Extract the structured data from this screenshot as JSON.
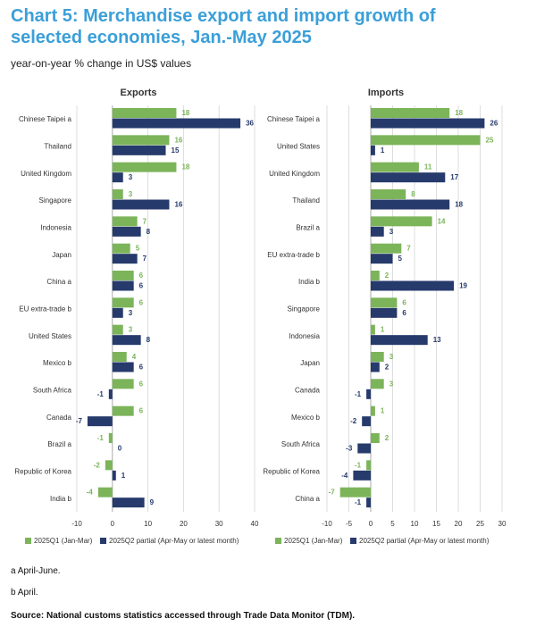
{
  "title": "Chart 5: Merchandise export and import growth of selected economies, Jan.-May 2025",
  "subtitle": "year-on-year % change in US$ values",
  "colors": {
    "q1": "#7cb45a",
    "q2": "#263a6b",
    "title": "#3b9fd8"
  },
  "legend": {
    "q1": "2025Q1 (Jan-Mar)",
    "q2": "2025Q2 partial (Apr-May or latest month)"
  },
  "footnotes": {
    "a": "a  April-June.",
    "b": "b  April.",
    "source": "Source: National customs statistics accessed through Trade Data Monitor (TDM)."
  },
  "chart_data": [
    {
      "type": "bar",
      "orientation": "horizontal",
      "title": "Exports",
      "xlim": [
        -10,
        40
      ],
      "xticks": [
        -10,
        0,
        10,
        20,
        30,
        40
      ],
      "categories": [
        "Chinese Taipei  a",
        "Thailand",
        "United Kingdom",
        "Singapore",
        "Indonesia",
        "Japan",
        "China  a",
        "EU extra-trade  b",
        "United States",
        "Mexico  b",
        "South Africa",
        "Canada",
        "Brazil  a",
        "Republic of Korea",
        "India  b"
      ],
      "series": [
        {
          "name": "2025Q1 (Jan-Mar)",
          "values": [
            18,
            16,
            18,
            3,
            7,
            5,
            6,
            6,
            3,
            4,
            6,
            6,
            -1,
            -2,
            -4
          ]
        },
        {
          "name": "2025Q2 partial (Apr-May or latest month)",
          "values": [
            36,
            15,
            3,
            16,
            8,
            7,
            6,
            3,
            8,
            6,
            -1,
            -7,
            0,
            1,
            9
          ]
        }
      ],
      "grid": true,
      "legend_position": "bottom"
    },
    {
      "type": "bar",
      "orientation": "horizontal",
      "title": "Imports",
      "xlim": [
        -10,
        30
      ],
      "xticks": [
        -10,
        -5,
        0,
        5,
        10,
        15,
        20,
        25,
        30
      ],
      "categories": [
        "Chinese Taipei  a",
        "United States",
        "United Kingdom",
        "Thailand",
        "Brazil  a",
        "EU extra-trade  b",
        "India  b",
        "Singapore",
        "Indonesia",
        "Japan",
        "Canada",
        "Mexico  b",
        "South Africa",
        "Republic of Korea",
        "China  a"
      ],
      "series": [
        {
          "name": "2025Q1 (Jan-Mar)",
          "values": [
            18,
            25,
            11,
            8,
            14,
            7,
            2,
            6,
            1,
            3,
            3,
            1,
            2,
            -1,
            -7
          ]
        },
        {
          "name": "2025Q2 partial (Apr-May or latest month)",
          "values": [
            26,
            1,
            17,
            18,
            3,
            5,
            19,
            6,
            13,
            2,
            -1,
            -2,
            -3,
            -4,
            -1
          ]
        }
      ],
      "grid": true,
      "legend_position": "bottom"
    }
  ]
}
